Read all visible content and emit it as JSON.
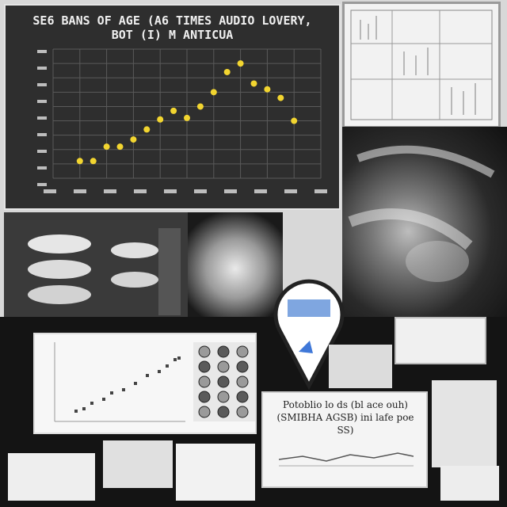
{
  "main_chart": {
    "title_line1": "SE6 BANS OF AGE (A6 TIMES AUDIO LOVERY,",
    "title_line2": "BOT (I) M ANTICUA"
  },
  "chart_data": {
    "type": "scatter",
    "x": [
      1,
      1.5,
      2,
      2.5,
      3,
      3.5,
      4,
      4.5,
      5,
      5.5,
      6,
      6.5,
      7,
      7.5,
      8,
      8.5,
      9
    ],
    "y": [
      12,
      12,
      22,
      22,
      27,
      34,
      41,
      47,
      42,
      50,
      60,
      74,
      80,
      66,
      62,
      56,
      40
    ],
    "xlim": [
      0,
      10
    ],
    "ylim": [
      0,
      90
    ],
    "grid": true,
    "point_color": "#f2d530"
  },
  "note_card": {
    "line1": "Potoblio lo ds (bl ace ouh)",
    "line2": "(SMIBHA AGSB) ini lafe poe",
    "line3": "SS)"
  },
  "colors": {
    "chart_bg": "#2e2e2e",
    "grid": "#5a5a5a",
    "panel_border": "#e6e6e6"
  }
}
